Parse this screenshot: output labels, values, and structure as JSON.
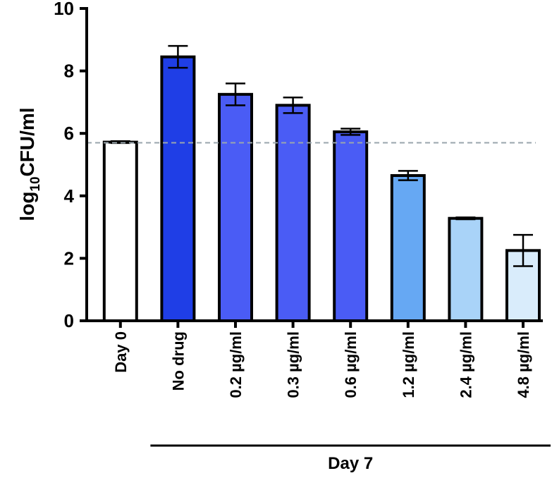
{
  "chart_data": {
    "type": "bar",
    "y_label_parts": [
      "log",
      "10",
      "CFU/ml"
    ],
    "categories": [
      "Day 0",
      "No drug",
      "0.2 µg/ml",
      "0.3 µg/ml",
      "0.6 µg/ml",
      "1.2 µg/ml",
      "2.4 µg/ml",
      "4.8 µg/ml"
    ],
    "values": [
      5.72,
      8.45,
      7.25,
      6.9,
      6.05,
      4.65,
      3.28,
      2.25
    ],
    "errors": [
      0.03,
      0.35,
      0.35,
      0.25,
      0.1,
      0.15,
      0.03,
      0.5
    ],
    "colors": [
      "#ffffff",
      "#1f3ee6",
      "#4a5cf5",
      "#4a5cf5",
      "#4a5cf5",
      "#66a8f3",
      "#a9d3f8",
      "#d9ecfb"
    ],
    "ylim": [
      0,
      10
    ],
    "yticks": [
      0,
      2,
      4,
      6,
      8,
      10
    ],
    "reference_line": 5.7,
    "groups": [
      {
        "label": "Day 7",
        "start": 1,
        "end": 7
      }
    ]
  }
}
